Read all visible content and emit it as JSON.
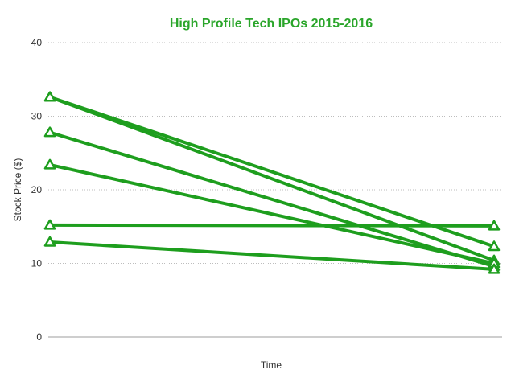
{
  "chart_data": {
    "type": "line",
    "title": "High Profile Tech IPOs 2015-2016",
    "xlabel": "Time",
    "ylabel": "Stock Price ($)",
    "ylim": [
      0,
      40
    ],
    "yticks": [
      "0",
      "10",
      "20",
      "30",
      "40"
    ],
    "grid": true,
    "legend": "none",
    "marker": "triangle",
    "colors": {
      "series": "#1e9e1e",
      "title": "#2aa52a"
    },
    "series": [
      {
        "values": [
          32.6,
          10.4
        ]
      },
      {
        "values": [
          27.8,
          9.6
        ]
      },
      {
        "values": [
          23.4,
          10.0
        ]
      },
      {
        "values": [
          15.2,
          15.1
        ]
      },
      {
        "values": [
          12.9,
          9.2
        ]
      },
      {
        "values": [
          32.6,
          12.3
        ]
      }
    ]
  }
}
